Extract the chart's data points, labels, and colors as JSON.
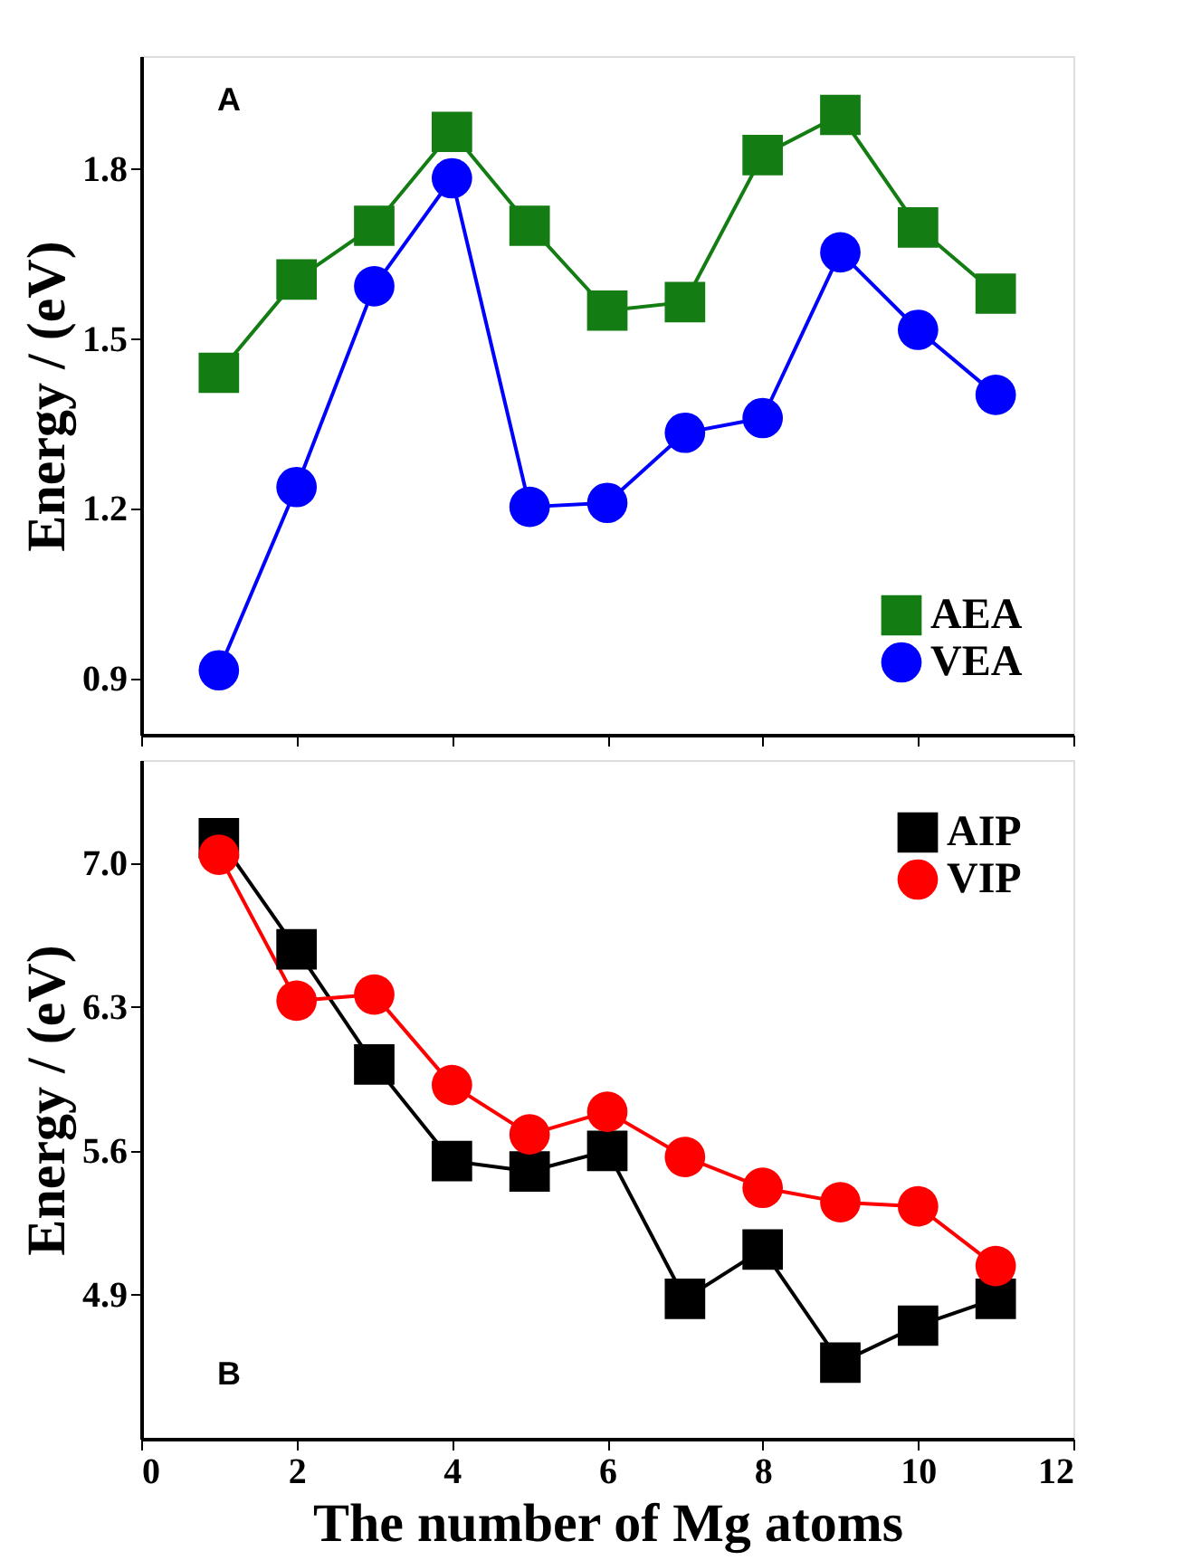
{
  "chart_data": [
    {
      "type": "line",
      "x": [
        1,
        2,
        3,
        4,
        5,
        6,
        7,
        8,
        9,
        10,
        11
      ],
      "ylabel": "Energy / (eV)",
      "annotations": [
        "A"
      ],
      "series": [
        {
          "name": "AEA",
          "color": "#137d13",
          "marker": "square",
          "values": [
            1.44,
            1.605,
            1.7,
            1.866,
            1.7,
            1.55,
            1.565,
            1.825,
            1.896,
            1.697,
            1.58
          ]
        },
        {
          "name": "VEA",
          "color": "#0000ff",
          "marker": "circle",
          "values": [
            0.914,
            1.238,
            1.593,
            1.784,
            1.203,
            1.21,
            1.334,
            1.36,
            1.653,
            1.516,
            1.401
          ]
        }
      ],
      "xlim": [
        0,
        12
      ],
      "xticks": [
        0,
        2,
        4,
        6,
        8,
        10,
        12
      ],
      "ylim": [
        0.8,
        2.0
      ],
      "yticks": [
        0.9,
        1.2,
        1.5,
        1.8
      ],
      "tick_labels": "y",
      "legend": "bottom right",
      "grid": false
    },
    {
      "type": "line",
      "x": [
        1,
        2,
        3,
        4,
        5,
        6,
        7,
        8,
        9,
        10,
        11
      ],
      "xlabel": "The number of Mg atoms",
      "ylabel": "Energy / (eV)",
      "annotations": [
        "B"
      ],
      "series": [
        {
          "name": "AIP",
          "color": "#000000",
          "marker": "square",
          "values": [
            7.12,
            6.58,
            6.02,
            5.55,
            5.5,
            5.6,
            4.88,
            5.12,
            4.57,
            4.75,
            4.88
          ]
        },
        {
          "name": "VIP",
          "color": "#ff0000",
          "marker": "circle",
          "values": [
            7.04,
            6.33,
            6.36,
            5.92,
            5.68,
            5.79,
            5.57,
            5.42,
            5.35,
            5.33,
            5.04
          ]
        }
      ],
      "xlim": [
        0,
        12
      ],
      "xticks": [
        0,
        2,
        4,
        6,
        8,
        10,
        12
      ],
      "ylim": [
        4.2,
        7.5
      ],
      "yticks": [
        4.9,
        5.6,
        6.3,
        {
          "value": 7,
          "label": "7.0"
        }
      ],
      "legend": "top right",
      "grid": false
    }
  ]
}
